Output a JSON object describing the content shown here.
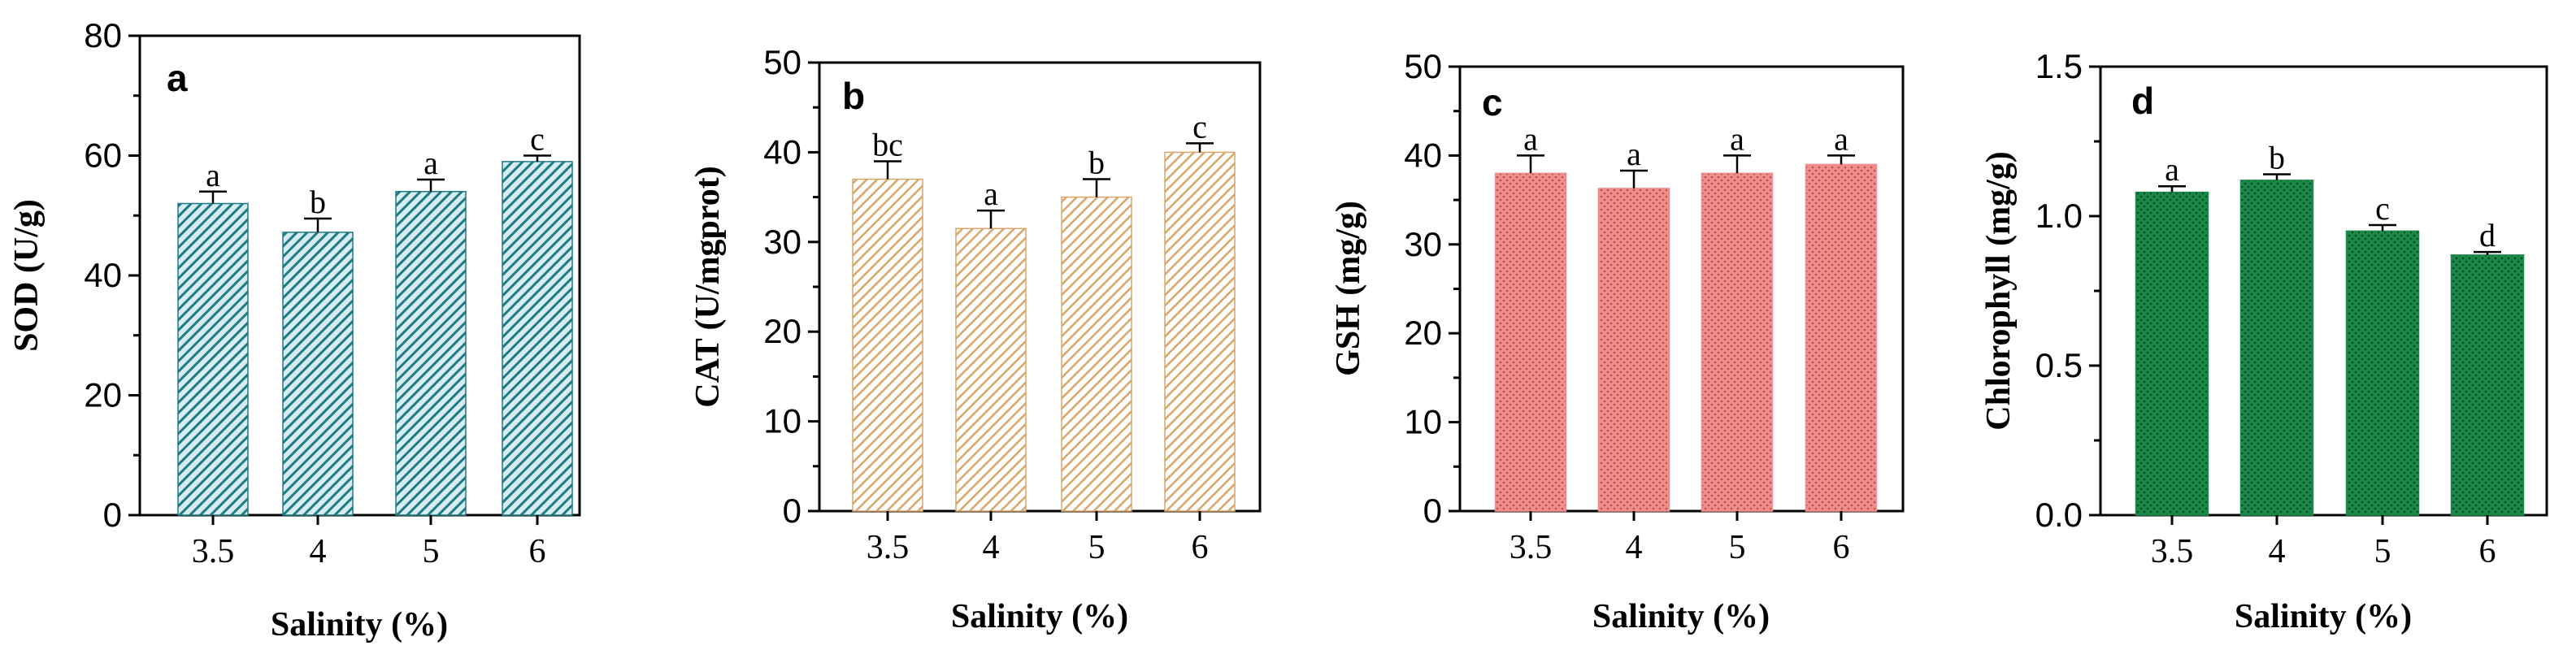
{
  "chart_data": [
    {
      "type": "bar",
      "panel_label": "a",
      "categories": [
        "3.5",
        "4",
        "5",
        "6"
      ],
      "values": [
        52,
        47.2,
        54,
        59
      ],
      "errors": [
        2,
        2.3,
        2,
        1
      ],
      "significance": [
        "a",
        "b",
        "a",
        "c"
      ],
      "xlabel": "Salinity (%)",
      "ylabel": "SOD (U/g)",
      "ylim": [
        0,
        80
      ],
      "yticks": [
        "0",
        "20",
        "40",
        "60",
        "80"
      ],
      "bar_color": "#1f7a86",
      "fill_pattern": "diagonal-hatch"
    },
    {
      "type": "bar",
      "panel_label": "b",
      "categories": [
        "3.5",
        "4",
        "5",
        "6"
      ],
      "values": [
        37,
        31.5,
        35,
        40
      ],
      "errors": [
        2,
        2,
        2,
        1
      ],
      "significance": [
        "bc",
        "a",
        "b",
        "c"
      ],
      "xlabel": "Salinity (%)",
      "ylabel": "CAT (U/mgprot)",
      "ylim": [
        0,
        50
      ],
      "yticks": [
        "0",
        "10",
        "20",
        "30",
        "40",
        "50"
      ],
      "bar_color": "#d9a66a",
      "fill_pattern": "diagonal-hatch"
    },
    {
      "type": "bar",
      "panel_label": "c",
      "categories": [
        "3.5",
        "4",
        "5",
        "6"
      ],
      "values": [
        38,
        36.3,
        38,
        39
      ],
      "errors": [
        2,
        2,
        2,
        1
      ],
      "significance": [
        "a",
        "a",
        "a",
        "a"
      ],
      "xlabel": "Salinity (%)",
      "ylabel": "GSH (mg/g)",
      "ylim": [
        0,
        50
      ],
      "yticks": [
        "0",
        "10",
        "20",
        "30",
        "40",
        "50"
      ],
      "bar_color": "#f08e8e",
      "fill_pattern": "dots"
    },
    {
      "type": "bar",
      "panel_label": "d",
      "categories": [
        "3.5",
        "4",
        "5",
        "6"
      ],
      "values": [
        1.08,
        1.12,
        0.95,
        0.87
      ],
      "errors": [
        0.02,
        0.02,
        0.02,
        0.01
      ],
      "significance": [
        "a",
        "b",
        "c",
        "d"
      ],
      "xlabel": "Salinity (%)",
      "ylabel": "Chlorophyll (mg/g)",
      "ylim": [
        0,
        1.5
      ],
      "yticks": [
        "0.0",
        "0.5",
        "1.0",
        "1.5"
      ],
      "bar_color": "#1a8a4a",
      "fill_pattern": "dots"
    }
  ]
}
